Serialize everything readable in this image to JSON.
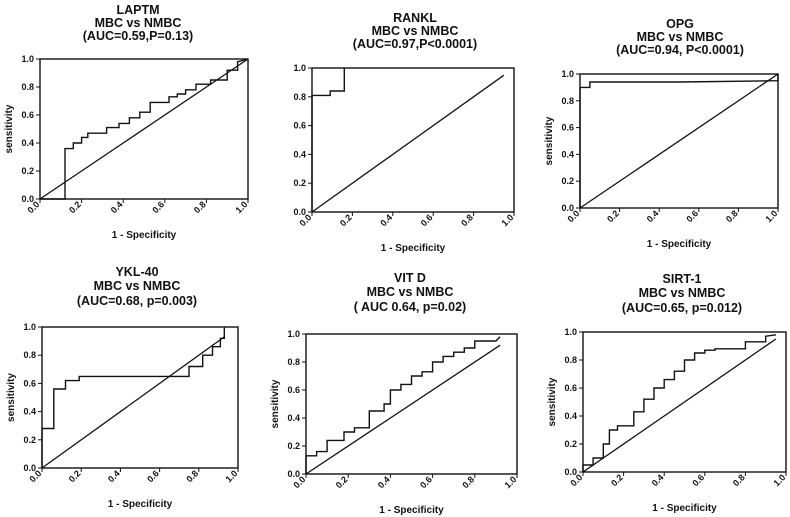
{
  "chart_data": [
    {
      "type": "line",
      "title_lines": [
        "LAPTM",
        "MBC vs NMBC",
        "(AUC=0.59,P=0.13)"
      ],
      "xlabel": "1 - Specificity",
      "ylabel": "sensitivity",
      "xlim": [
        0,
        1
      ],
      "ylim": [
        0,
        1
      ],
      "ticks": [
        "0.0",
        "0.2",
        "0.4",
        "0.6",
        "0.8",
        "1.0"
      ],
      "series": [
        {
          "role": "roc",
          "x": [
            0.0,
            0.12,
            0.12,
            0.16,
            0.16,
            0.2,
            0.2,
            0.23,
            0.23,
            0.32,
            0.32,
            0.38,
            0.38,
            0.43,
            0.43,
            0.48,
            0.48,
            0.53,
            0.53,
            0.62,
            0.62,
            0.66,
            0.66,
            0.7,
            0.7,
            0.75,
            0.75,
            0.82,
            0.82,
            0.9,
            0.9,
            0.95,
            0.95,
            1.0
          ],
          "y": [
            0.0,
            0.0,
            0.36,
            0.36,
            0.4,
            0.4,
            0.44,
            0.44,
            0.47,
            0.47,
            0.51,
            0.51,
            0.54,
            0.54,
            0.58,
            0.58,
            0.62,
            0.62,
            0.69,
            0.69,
            0.73,
            0.73,
            0.75,
            0.75,
            0.78,
            0.78,
            0.82,
            0.82,
            0.85,
            0.85,
            0.92,
            0.92,
            0.98,
            1.0
          ]
        },
        {
          "role": "reference",
          "x": [
            0,
            1
          ],
          "y": [
            0,
            1
          ]
        }
      ]
    },
    {
      "type": "line",
      "title_lines": [
        "RANKL",
        "MBC vs NMBC",
        "(AUC=0.97,P<0.0001)"
      ],
      "xlabel": "1 - Specificity",
      "ylabel": "",
      "xlim": [
        0,
        1
      ],
      "ylim": [
        0,
        1
      ],
      "ticks": [
        "0.0",
        "0.2",
        "0.4",
        "0.6",
        "0.8",
        "1.0"
      ],
      "series": [
        {
          "role": "roc",
          "x": [
            0.0,
            0.0,
            0.09,
            0.09,
            0.16,
            0.16,
            0.16
          ],
          "y": [
            0.0,
            0.81,
            0.81,
            0.84,
            0.84,
            0.96,
            1.0
          ]
        },
        {
          "role": "reference",
          "x": [
            0,
            0.95
          ],
          "y": [
            0,
            0.95
          ]
        }
      ]
    },
    {
      "type": "line",
      "title_lines": [
        "OPG",
        "MBC vs NMBC",
        "(AUC=0.94, P<0.0001)"
      ],
      "xlabel": "1 - Specificity",
      "ylabel": "sensitivity",
      "xlim": [
        0,
        1
      ],
      "ylim": [
        0,
        1
      ],
      "ticks": [
        "0.0",
        "0.2",
        "0.4",
        "0.6",
        "0.8",
        "1.0"
      ],
      "series": [
        {
          "role": "roc",
          "x": [
            0.0,
            0.0,
            0.05,
            0.05,
            0.5,
            1.0,
            1.0
          ],
          "y": [
            0.0,
            0.9,
            0.9,
            0.94,
            0.94,
            0.95,
            1.0
          ]
        },
        {
          "role": "reference",
          "x": [
            0,
            1
          ],
          "y": [
            0,
            1
          ]
        }
      ]
    },
    {
      "type": "line",
      "title_lines": [
        "YKL-40",
        "MBC vs NMBC",
        "(AUC=0.68, p=0.003)"
      ],
      "xlabel": "1 - Specificity",
      "ylabel": "sensitivity",
      "xlim": [
        0,
        1
      ],
      "ylim": [
        0,
        1
      ],
      "ticks": [
        "0.0",
        "0.2",
        "0.4",
        "0.6",
        "0.8",
        "1.0"
      ],
      "series": [
        {
          "role": "roc",
          "x": [
            0.0,
            0.0,
            0.06,
            0.06,
            0.12,
            0.12,
            0.19,
            0.19,
            0.75,
            0.75,
            0.82,
            0.82,
            0.87,
            0.87,
            0.91,
            0.91,
            0.93,
            0.93
          ],
          "y": [
            0.0,
            0.28,
            0.28,
            0.56,
            0.56,
            0.62,
            0.62,
            0.65,
            0.65,
            0.72,
            0.72,
            0.8,
            0.8,
            0.86,
            0.86,
            0.92,
            0.92,
            1.0
          ]
        },
        {
          "role": "reference",
          "x": [
            0,
            0.93
          ],
          "y": [
            0,
            0.93
          ]
        }
      ]
    },
    {
      "type": "line",
      "title_lines": [
        "VIT D",
        "MBC vs NMBC",
        "( AUC 0.64, p=0.02)"
      ],
      "xlabel": "1 - Specificity",
      "ylabel": "sensitivity",
      "xlim": [
        0,
        1
      ],
      "ylim": [
        0,
        1
      ],
      "ticks": [
        "0.0",
        "0.2",
        "0.4",
        "0.6",
        "0.8",
        "1.0"
      ],
      "series": [
        {
          "role": "roc",
          "x": [
            0.0,
            0.0,
            0.05,
            0.05,
            0.1,
            0.1,
            0.18,
            0.18,
            0.23,
            0.23,
            0.3,
            0.3,
            0.37,
            0.37,
            0.4,
            0.4,
            0.45,
            0.45,
            0.5,
            0.5,
            0.55,
            0.55,
            0.6,
            0.6,
            0.65,
            0.65,
            0.7,
            0.7,
            0.75,
            0.75,
            0.8,
            0.8,
            0.9,
            0.92
          ],
          "y": [
            0.0,
            0.13,
            0.13,
            0.16,
            0.16,
            0.24,
            0.24,
            0.3,
            0.3,
            0.33,
            0.33,
            0.45,
            0.45,
            0.5,
            0.5,
            0.6,
            0.6,
            0.64,
            0.64,
            0.7,
            0.7,
            0.73,
            0.73,
            0.8,
            0.8,
            0.84,
            0.84,
            0.87,
            0.87,
            0.9,
            0.9,
            0.95,
            0.95,
            0.98
          ]
        },
        {
          "role": "reference",
          "x": [
            0,
            0.92
          ],
          "y": [
            0,
            0.92
          ]
        }
      ]
    },
    {
      "type": "line",
      "title_lines": [
        "SIRT-1",
        "MBC vs NMBC",
        "(AUC=0.65, p=0.012)"
      ],
      "xlabel": "1 - Specificity",
      "ylabel": "sensitivity",
      "xlim": [
        0,
        1
      ],
      "ylim": [
        0,
        1
      ],
      "ticks": [
        "0.0",
        "0.2",
        "0.4",
        "0.6",
        "0.8",
        "1.0"
      ],
      "series": [
        {
          "role": "roc",
          "x": [
            0.0,
            0.0,
            0.05,
            0.05,
            0.1,
            0.1,
            0.13,
            0.13,
            0.17,
            0.17,
            0.25,
            0.25,
            0.3,
            0.3,
            0.35,
            0.35,
            0.4,
            0.4,
            0.45,
            0.45,
            0.5,
            0.5,
            0.55,
            0.55,
            0.6,
            0.6,
            0.65,
            0.65,
            0.8,
            0.8,
            0.9,
            0.9,
            0.95
          ],
          "y": [
            0.0,
            0.05,
            0.05,
            0.1,
            0.1,
            0.2,
            0.2,
            0.3,
            0.3,
            0.33,
            0.33,
            0.43,
            0.43,
            0.52,
            0.52,
            0.6,
            0.6,
            0.66,
            0.66,
            0.72,
            0.72,
            0.8,
            0.8,
            0.85,
            0.85,
            0.87,
            0.87,
            0.88,
            0.88,
            0.93,
            0.93,
            0.97,
            0.98
          ]
        },
        {
          "role": "reference",
          "x": [
            0,
            0.95
          ],
          "y": [
            0,
            0.95
          ]
        }
      ]
    }
  ]
}
